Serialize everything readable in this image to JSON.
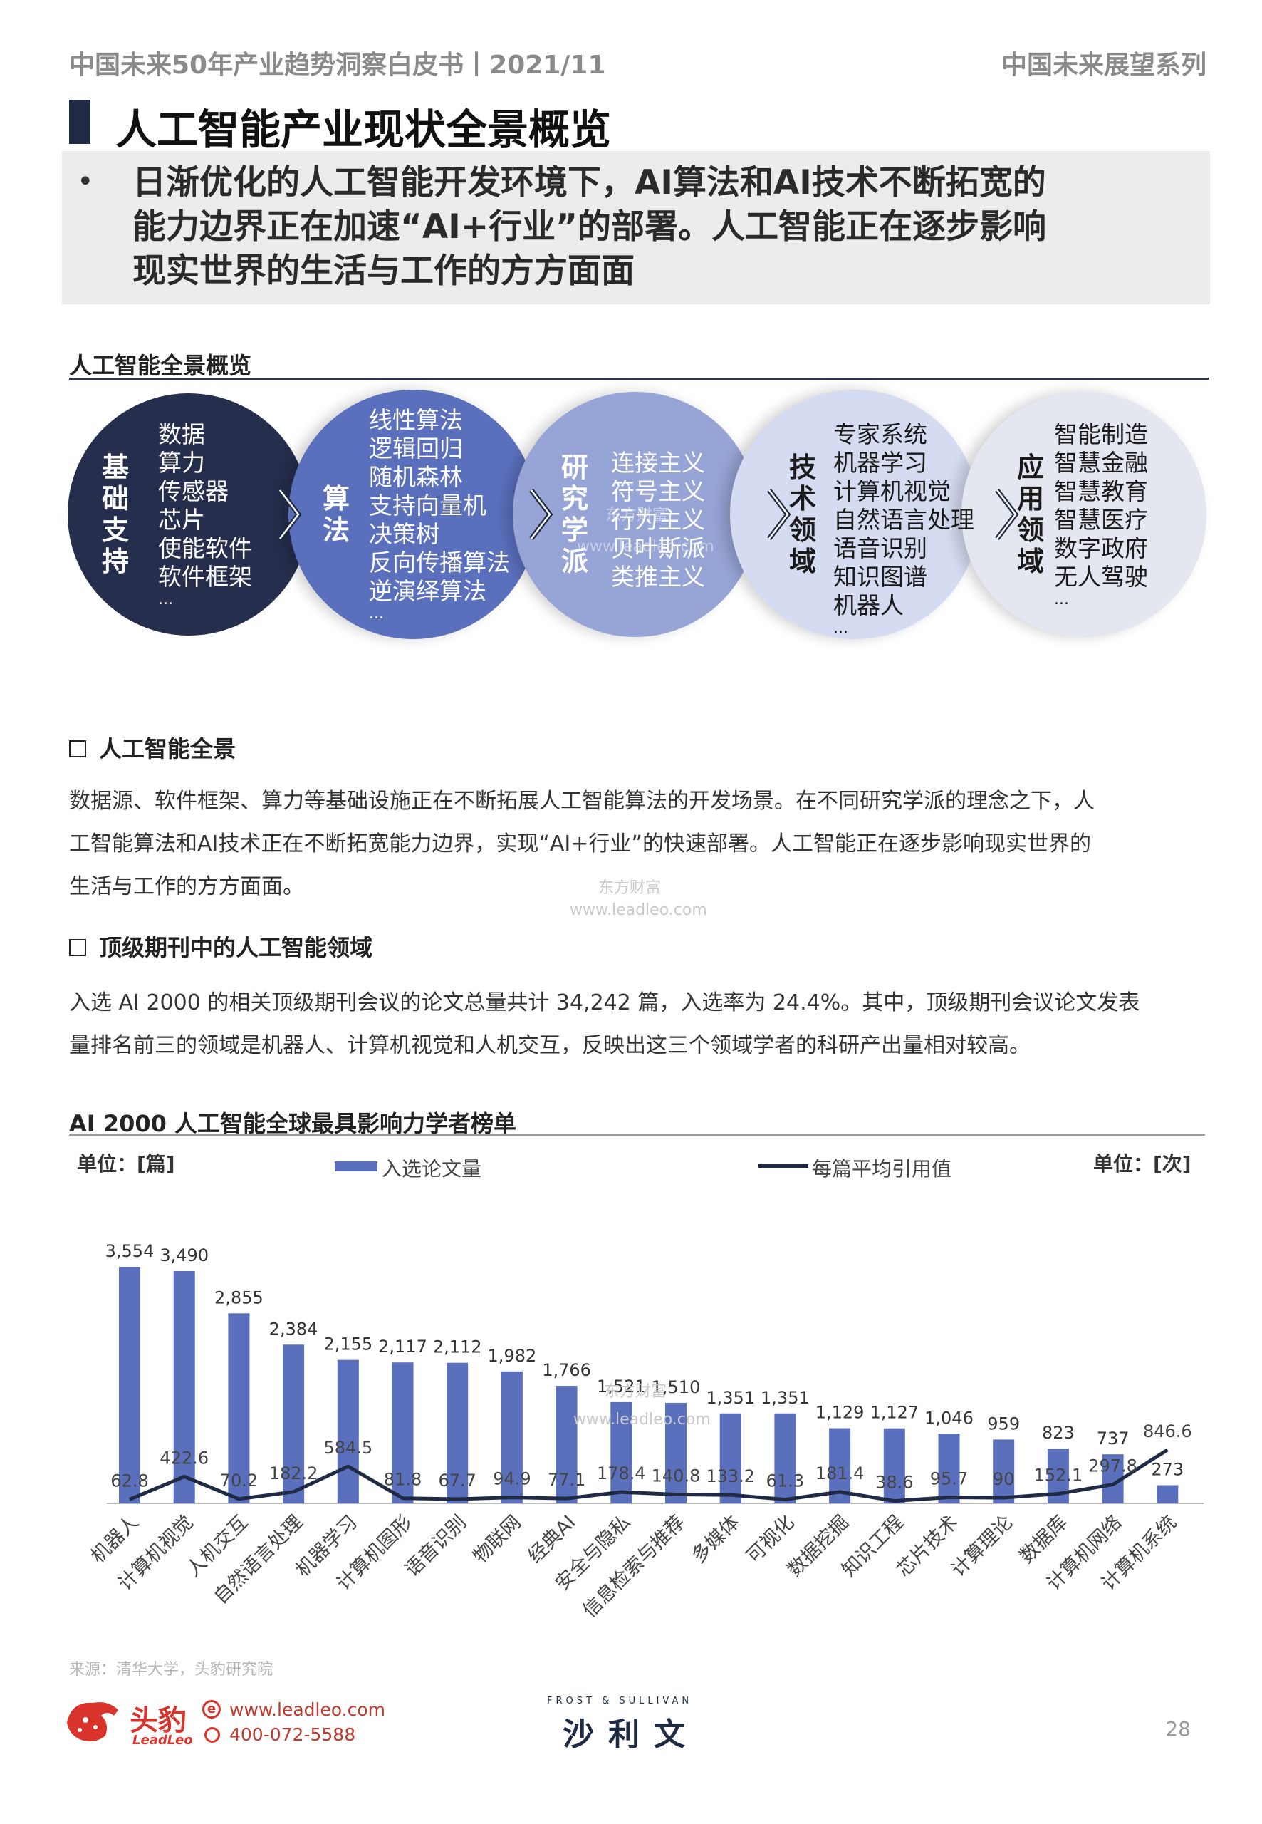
{
  "header": {
    "left": "中国未来50年产业趋势洞察白皮书丨2021/11",
    "right": "中国未来展望系列"
  },
  "title": "人工智能产业现状全景概览",
  "lead": {
    "bullet": "•",
    "line1": "日渐优化的人工智能开发环境下，AI算法和AI技术不断拓宽的",
    "line2": "能力边界正在加速“AI+行业”的部署。人工智能正在逐步影响",
    "line3": "现实世界的生活与工作的方方面面"
  },
  "overview": {
    "title": "人工智能全景概览",
    "circles": [
      {
        "head": [
          "基",
          "础",
          "支",
          "持"
        ],
        "items": [
          "数据",
          "算力",
          "传感器",
          "芯片",
          "使能软件",
          "软件框架",
          "..."
        ],
        "color": "#262e4d",
        "text_color": "#ffffff"
      },
      {
        "head": [
          "算",
          "法"
        ],
        "items": [
          "线性算法",
          "逻辑回归",
          "随机森林",
          "支持向量机",
          "决策树",
          "反向传播算法",
          "逆演绎算法",
          "..."
        ],
        "color": "#5b70bd",
        "text_color": "#ffffff"
      },
      {
        "head": [
          "研",
          "究",
          "学",
          "派"
        ],
        "items": [
          "连接主义",
          "符号主义",
          "行为主义",
          "贝叶斯派",
          "类推主义"
        ],
        "color": "#97a5d6",
        "text_color": "#ffffff"
      },
      {
        "head": [
          "技",
          "术",
          "领",
          "域"
        ],
        "items": [
          "专家系统",
          "机器学习",
          "计算机视觉",
          "自然语言处理",
          "语音识别",
          "知识图谱",
          "机器人",
          "..."
        ],
        "color": "#d5dbf0",
        "text_color": "#1a1a1a"
      },
      {
        "head": [
          "应",
          "用",
          "领",
          "域"
        ],
        "items": [
          "智能制造",
          "智慧金融",
          "智慧教育",
          "智慧医疗",
          "数字政府",
          "无人驾驶",
          "..."
        ],
        "color": "#e4e7ef",
        "text_color": "#1a1a1a"
      }
    ]
  },
  "section1": {
    "heading": "人工智能全景",
    "lines": [
      "数据源、软件框架、算力等基础设施正在不断拓展人工智能算法的开发场景。在不同研究学派的理念之下，人",
      "工智能算法和AI技术正在不断拓宽能力边界，实现“AI+行业”的快速部署。人工智能正在逐步影响现实世界的",
      "生活与工作的方方面面。"
    ]
  },
  "section2": {
    "heading": "顶级期刊中的人工智能领域",
    "lines": [
      "入选 AI 2000 的相关顶级期刊会议的论文总量共计 34,242 篇，入选率为 24.4%。其中，顶级期刊会议论文发表",
      "量排名前三的领域是机器人、计算机视觉和人机交互，反映出这三个领域学者的科研产出量相对较高。"
    ]
  },
  "watermarks": {
    "cn": "东方财富",
    "url": "www.leadleo.com"
  },
  "chart_title": "AI 2000 人工智能全球最具影响力学者榜单",
  "chart_data": {
    "type": "bar",
    "title": "",
    "unit_left": "单位：[篇]",
    "unit_right": "单位：[次]",
    "categories": [
      "机器人",
      "计算机视觉",
      "人机交互",
      "自然语言处理",
      "机器学习",
      "计算机图形",
      "语音识别",
      "物联网",
      "经典AI",
      "安全与隐私",
      "信息检索与推荐",
      "多媒体",
      "可视化",
      "数据挖掘",
      "知识工程",
      "芯片技术",
      "计算理论",
      "数据库",
      "计算机网络",
      "计算机系统"
    ],
    "series": [
      {
        "name": "入选论文量",
        "type": "bar",
        "color": "#5b70bd",
        "values": [
          3554,
          3490,
          2855,
          2384,
          2155,
          2117,
          2112,
          1982,
          1766,
          1521,
          1510,
          1351,
          1351,
          1129,
          1127,
          1046,
          959,
          823,
          737,
          273
        ],
        "labels": [
          "3,554",
          "3,490",
          "2,855",
          "2,384",
          "2,155",
          "2,117",
          "2,112",
          "1,982",
          "1,766",
          "1,521",
          "1,510",
          "1,351",
          "1,351",
          "1,129",
          "1,127",
          "1,046",
          "959",
          "823",
          "737",
          "273"
        ]
      },
      {
        "name": "每篇平均引用值",
        "type": "line",
        "color": "#1f2a44",
        "values": [
          62.8,
          422.6,
          70.2,
          182.2,
          584.5,
          81.8,
          67.7,
          94.9,
          77.1,
          178.4,
          140.8,
          133.2,
          61.3,
          181.4,
          38.6,
          95.7,
          90,
          152.1,
          297.8,
          846.6
        ],
        "labels": [
          "62.8",
          "422.6",
          "70.2",
          "182.2",
          "584.5",
          "81.8",
          "67.7",
          "94.9",
          "77.1",
          "178.4",
          "140.8",
          "133.2",
          "61.3",
          "181.4",
          "38.6",
          "95.7",
          "90",
          "152.1",
          "297.8",
          "846.6"
        ]
      }
    ],
    "ylim_left": [
      0,
      3800
    ],
    "ylim_right": [
      0,
      4000
    ],
    "legend_position": "top"
  },
  "footer": {
    "source": "来源：清华大学，头豹研究院",
    "brand_cn": "头豹",
    "brand_en": "LeadLeo",
    "site": "www.leadleo.com",
    "phone": "400-072-5588",
    "partner_top": "FROST & SULLIVAN",
    "partner_cn": "沙利文",
    "page": "28"
  }
}
